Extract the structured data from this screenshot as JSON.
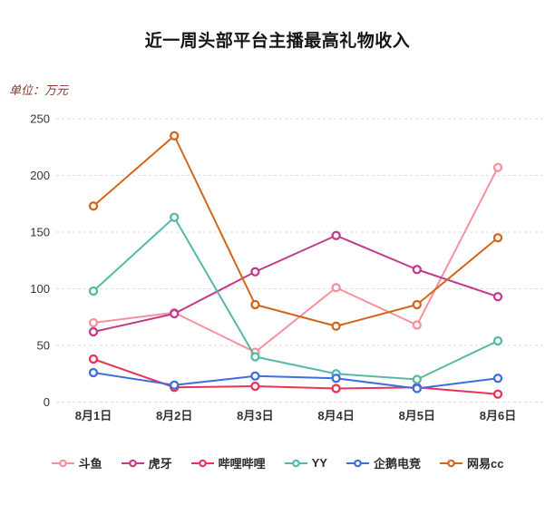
{
  "page": {
    "background": "#ffffff"
  },
  "chart_data": {
    "type": "line",
    "title": "近一周头部平台主播最高礼物收入",
    "unit_label": "单位：万元",
    "categories": [
      "8月1日",
      "8月2日",
      "8月3日",
      "8月4日",
      "8月5日",
      "8月6日"
    ],
    "series": [
      {
        "id": "douyu",
        "name": "斗鱼",
        "color": "#F5919E",
        "values": [
          70,
          79,
          44,
          101,
          68,
          207
        ]
      },
      {
        "id": "huya",
        "name": "虎牙",
        "color": "#C43A8A",
        "values": [
          62,
          78,
          115,
          147,
          117,
          93
        ]
      },
      {
        "id": "bilibili",
        "name": "哔哩哔哩",
        "color": "#E73357",
        "values": [
          38,
          13,
          14,
          12,
          13,
          7
        ]
      },
      {
        "id": "yy",
        "name": "YY",
        "color": "#53BAA7",
        "values": [
          98,
          163,
          40,
          25,
          20,
          54
        ]
      },
      {
        "id": "penguin-esports",
        "name": "企鹅电竞",
        "color": "#3D6EDF",
        "values": [
          26,
          15,
          23,
          21,
          12,
          21
        ]
      },
      {
        "id": "netease-cc",
        "name": "网易cc",
        "color": "#D2651A",
        "values": [
          173,
          235,
          86,
          67,
          86,
          145
        ]
      }
    ],
    "ylim": [
      0,
      250
    ],
    "yticks": [
      0,
      50,
      100,
      150,
      200,
      250
    ],
    "grid": "dashed",
    "grid_color": "#DBDBDB",
    "axis_label_color": "#333333",
    "legend_position": "bottom",
    "marker": "open-circle",
    "line_width": 2
  }
}
